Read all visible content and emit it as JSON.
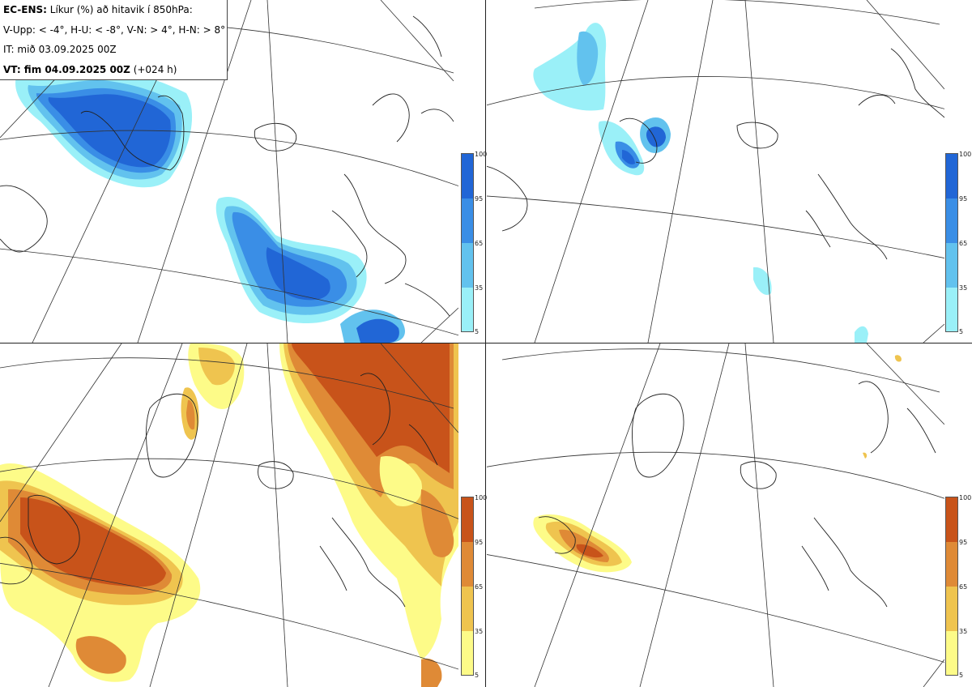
{
  "header": {
    "line1_bold": "EC-ENS:",
    "line1_rest": " Líkur (%) að hitavik í 850hPa:",
    "line2": "V-Upp: < -4°, H-U: < -8°, V-N: > 4°, H-N: > 8°",
    "line3": "IT: mið 03.09.2025 00Z",
    "line4_bold": "VT: fim 04.09.2025 00Z",
    "line4_rest": " (+024 h)"
  },
  "panels": [
    {
      "id": "V-Upp",
      "position": "top-left",
      "colormap": "blue",
      "threshold": "< -4°"
    },
    {
      "id": "H-U",
      "position": "top-right",
      "colormap": "blue",
      "threshold": "< -8°"
    },
    {
      "id": "V-N",
      "position": "bottom-left",
      "colormap": "orange",
      "threshold": "> 4°"
    },
    {
      "id": "H-N",
      "position": "bottom-right",
      "colormap": "orange",
      "threshold": "> 8°"
    }
  ],
  "colorbar": {
    "ticks": [
      "100",
      "95",
      "65",
      "35",
      "5"
    ],
    "blue_colors": [
      "#2166d6",
      "#3a8ee6",
      "#62c2ee",
      "#9af0f8"
    ],
    "orange_colors": [
      "#c8531a",
      "#df8a36",
      "#efc44f",
      "#fdfb88"
    ]
  },
  "colors": {
    "coast": "#222222",
    "graticule": "#333333"
  }
}
